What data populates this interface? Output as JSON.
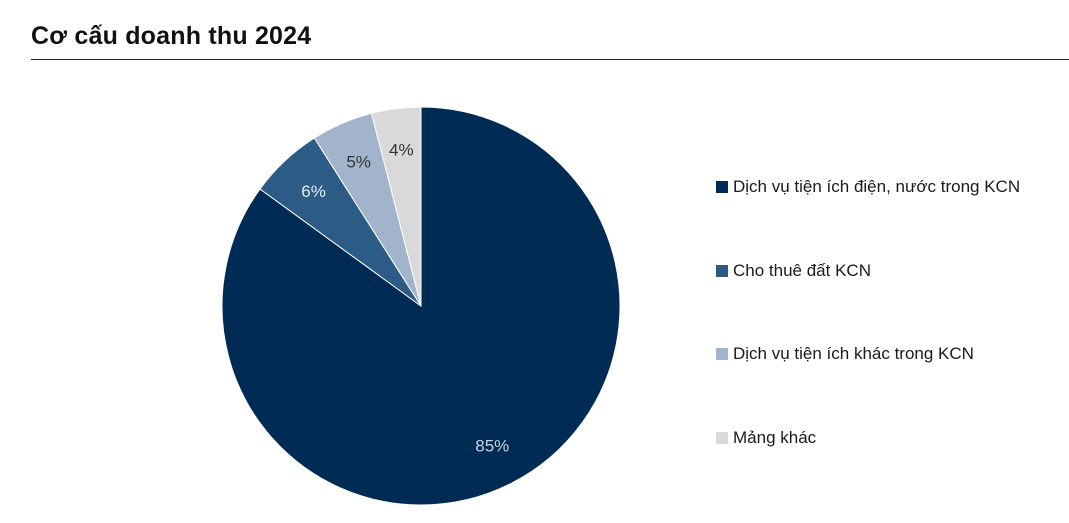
{
  "header": {
    "title": "Cơ cấu doanh thu 2024"
  },
  "chart_data": {
    "type": "pie",
    "title": "Cơ cấu doanh thu 2024",
    "categories": [
      "Dịch vụ tiện ích điện, nước trong KCN",
      "Cho thuê đất KCN",
      "Dịch vụ tiện ích khác trong KCN",
      "Mảng khác"
    ],
    "values": [
      85,
      6,
      5,
      4
    ],
    "labels": [
      "85%",
      "6%",
      "5%",
      "4%"
    ],
    "colors": [
      "#002b55",
      "#2c5b85",
      "#a2b3cc",
      "#d9d9d9"
    ],
    "label_colors": [
      "#c9d3e0",
      "#e6ecf3",
      "#333333",
      "#333333"
    ],
    "legend_position": "right",
    "start_angle": "12 o'clock, clockwise"
  }
}
